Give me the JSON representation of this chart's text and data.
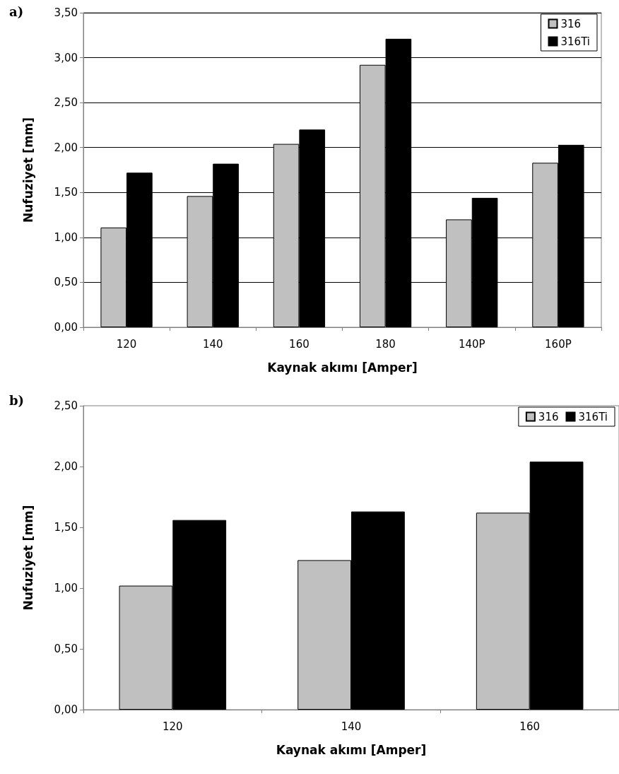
{
  "chart_data": [
    {
      "type": "bar",
      "title": "a)",
      "xlabel": "Kaynak akımı [Amper]",
      "ylabel": "Nufuziyet [mm]",
      "categories": [
        "120",
        "140",
        "160",
        "180",
        "140P",
        "160P"
      ],
      "series": [
        {
          "name": "316",
          "color": "#c0c0c0",
          "values": [
            1.11,
            1.46,
            2.04,
            2.92,
            1.2,
            1.83
          ]
        },
        {
          "name": "316Ti",
          "color": "#000000",
          "values": [
            1.72,
            1.82,
            2.2,
            3.21,
            1.44,
            2.03
          ]
        }
      ],
      "ylim": [
        0,
        3.5
      ],
      "yticks": [
        {
          "value": 0,
          "label": "0,00"
        },
        {
          "value": 0.5,
          "label": "0,50"
        },
        {
          "value": 1,
          "label": "1,00"
        },
        {
          "value": 1.5,
          "label": "1,50"
        },
        {
          "value": 2,
          "label": "2,00"
        },
        {
          "value": 2.5,
          "label": "2,50"
        },
        {
          "value": 3,
          "label": "3,00"
        },
        {
          "value": 3.5,
          "label": "3,50"
        }
      ],
      "grid": "y",
      "legend": "top right"
    },
    {
      "type": "bar",
      "title": "b)",
      "xlabel": "Kaynak akımı [Amper]",
      "ylabel": "Nufuziyet [mm]",
      "categories": [
        "120",
        "140",
        "160"
      ],
      "series": [
        {
          "name": "316",
          "color": "#c0c0c0",
          "values": [
            1.02,
            1.23,
            1.62
          ]
        },
        {
          "name": "316Ti",
          "color": "#000000",
          "values": [
            1.56,
            1.63,
            2.04
          ]
        }
      ],
      "ylim": [
        0,
        2.5
      ],
      "yticks": [
        {
          "value": 0,
          "label": "0,00"
        },
        {
          "value": 0.5,
          "label": "0,50"
        },
        {
          "value": 1,
          "label": "1,00"
        },
        {
          "value": 1.5,
          "label": "1,50"
        },
        {
          "value": 2,
          "label": "2,00"
        },
        {
          "value": 2.5,
          "label": "2,50"
        }
      ],
      "grid": false,
      "legend": "top right"
    }
  ]
}
